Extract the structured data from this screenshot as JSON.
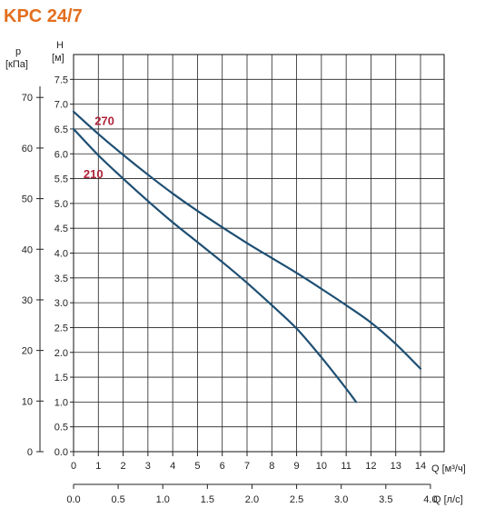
{
  "chart_data": {
    "type": "line",
    "title": "KPC 24/7",
    "x_axis": {
      "label": "Q [м³/ч]",
      "range": [
        0,
        14
      ],
      "ticks": [
        "0",
        "1",
        "2",
        "3",
        "4",
        "5",
        "6",
        "7",
        "8",
        "9",
        "10",
        "11",
        "12",
        "13",
        "14"
      ]
    },
    "x2_axis": {
      "label": "Q [л/с]",
      "range": [
        0,
        4.0
      ],
      "ticks": [
        "0.0",
        "0.5",
        "1.0",
        "1.5",
        "2.0",
        "2.5",
        "3.0",
        "3.5",
        "4.0"
      ]
    },
    "y_axis": {
      "label_top": "H",
      "label_unit": "[м]",
      "range": [
        0,
        8.0
      ],
      "ticks": [
        "0.0",
        "0.5",
        "1.0",
        "1.5",
        "2.0",
        "2.5",
        "3.0",
        "3.5",
        "4.0",
        "4.5",
        "5.0",
        "5.5",
        "6.0",
        "6.5",
        "7.0",
        "7.5"
      ]
    },
    "y2_axis": {
      "label_top": "p",
      "label_unit": "[кПа]",
      "ticks": [
        "0",
        "10",
        "20",
        "30",
        "40",
        "50",
        "60",
        "70"
      ]
    },
    "grid": true,
    "series": [
      {
        "name": "270",
        "color": "#1e4f73",
        "label_color": "#b0243a",
        "points": [
          [
            0,
            6.85
          ],
          [
            1,
            6.4
          ],
          [
            2,
            5.98
          ],
          [
            3,
            5.58
          ],
          [
            4,
            5.2
          ],
          [
            5,
            4.85
          ],
          [
            6,
            4.52
          ],
          [
            7,
            4.2
          ],
          [
            8,
            3.9
          ],
          [
            9,
            3.6
          ],
          [
            10,
            3.28
          ],
          [
            11,
            2.95
          ],
          [
            12,
            2.6
          ],
          [
            13,
            2.17
          ],
          [
            14,
            1.67
          ]
        ]
      },
      {
        "name": "210",
        "color": "#1e4f73",
        "label_color": "#b0243a",
        "points": [
          [
            0,
            6.5
          ],
          [
            1,
            5.97
          ],
          [
            2,
            5.5
          ],
          [
            3,
            5.05
          ],
          [
            4,
            4.62
          ],
          [
            5,
            4.22
          ],
          [
            6,
            3.82
          ],
          [
            7,
            3.4
          ],
          [
            8,
            2.95
          ],
          [
            9,
            2.48
          ],
          [
            10,
            1.9
          ],
          [
            11,
            1.27
          ],
          [
            11.4,
            1.0
          ]
        ]
      }
    ]
  }
}
